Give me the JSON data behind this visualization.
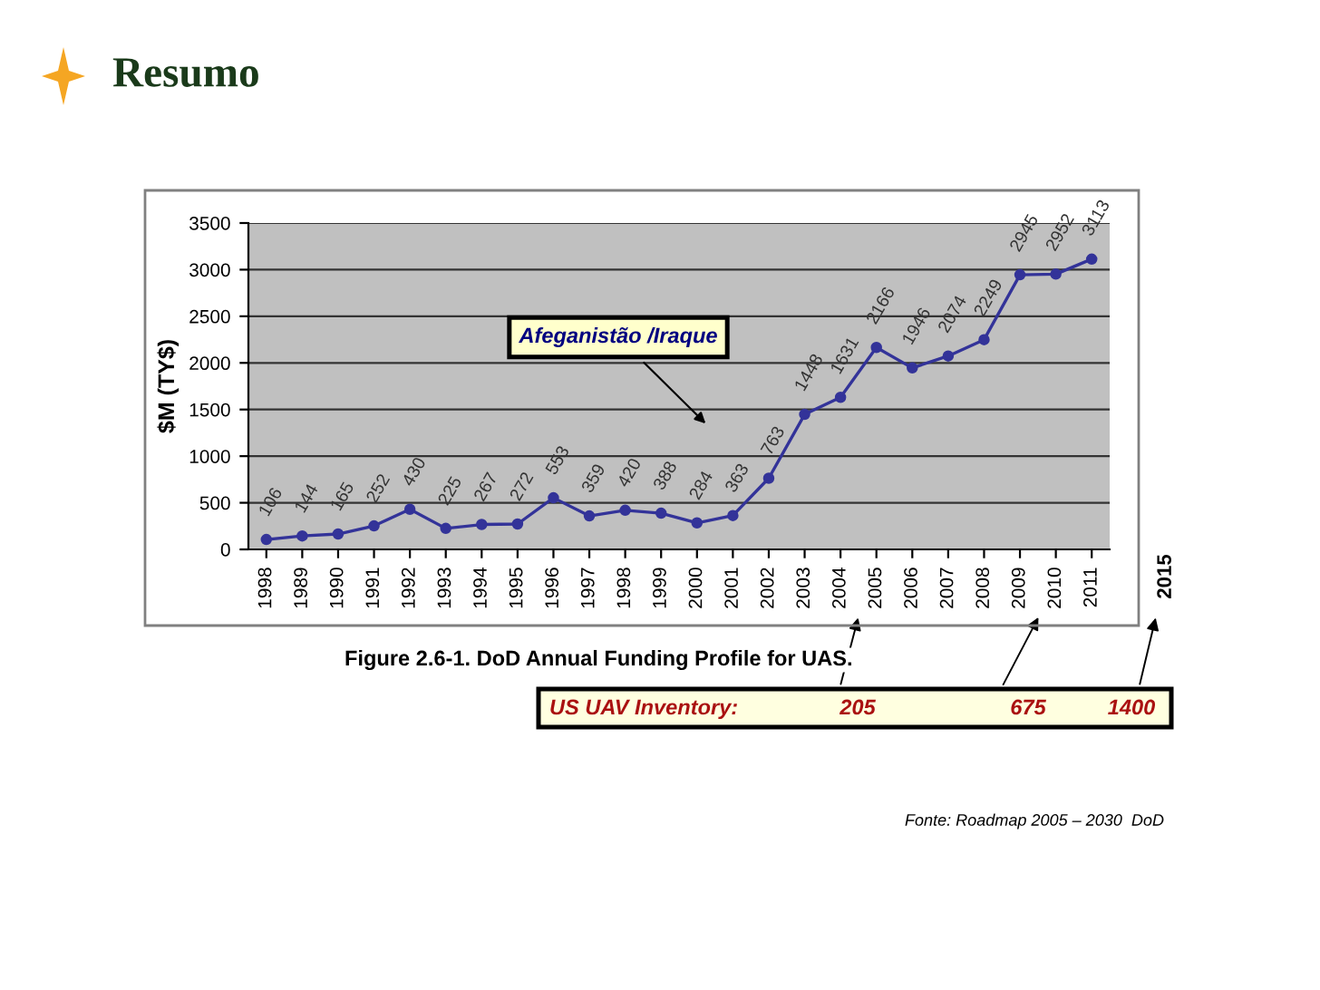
{
  "chart_data": {
    "type": "line",
    "title": "Resumo",
    "ylabel": "$M (TY$)",
    "categories": [
      "1998",
      "1989",
      "1990",
      "1991",
      "1992",
      "1993",
      "1994",
      "1995",
      "1996",
      "1997",
      "1998",
      "1999",
      "2000",
      "2001",
      "2002",
      "2003",
      "2004",
      "2005",
      "2006",
      "2007",
      "2008",
      "2009",
      "2010",
      "2011"
    ],
    "series": [
      {
        "color": "#333399",
        "values": [
          106,
          144,
          165,
          252,
          430,
          225,
          267,
          272,
          553,
          359,
          420,
          388,
          284,
          363,
          763,
          1448,
          1631,
          2166,
          1946,
          2074,
          2249,
          2945,
          2952,
          3113
        ]
      }
    ],
    "ylim": [
      0,
      3500
    ],
    "yticks": [
      0,
      500,
      1000,
      1500,
      2000,
      2500,
      3000,
      3500
    ],
    "grid": "y",
    "marker": "circle",
    "line_style": "solid",
    "data_labels": true,
    "annotations": [
      "Afeganistão /Iraque",
      "2015",
      "US UAV Inventory:",
      "205",
      "675",
      "1400",
      "Figure 2.6-1. DoD Annual Funding Profile for UAS.",
      "Fonte: Roadmap 2005 – 2030  DoD"
    ]
  }
}
